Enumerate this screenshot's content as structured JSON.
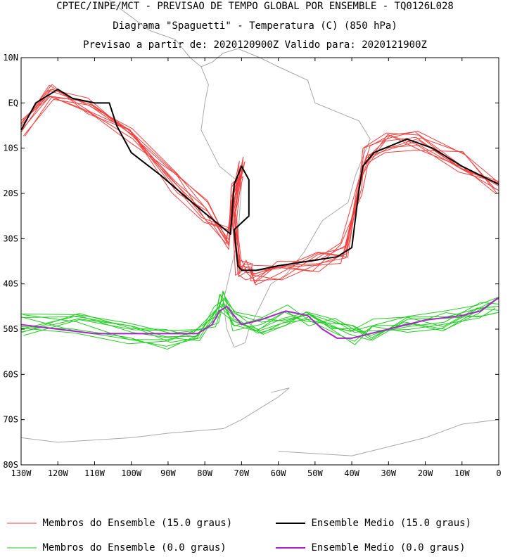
{
  "header": {
    "line1": "CPTEC/INPE/MCT - PREVISAO DE TEMPO GLOBAL POR ENSEMBLE - TQ0126L028",
    "line2": "Diagrama \"Spaguetti\" - Temperatura (C) (850 hPa)",
    "line3": "Previsao a partir de: 2020120900Z  Valido para: 2020121900Z"
  },
  "chart_data": {
    "type": "line",
    "title": "Diagrama \"Spaguetti\" - Temperatura (C) (850 hPa)",
    "xlabel": "",
    "ylabel": "",
    "xlim": [
      -130,
      0
    ],
    "ylim": [
      -80,
      10
    ],
    "grid": false,
    "x_ticks": [
      {
        "value": -130,
        "label": "130W"
      },
      {
        "value": -120,
        "label": "120W"
      },
      {
        "value": -110,
        "label": "110W"
      },
      {
        "value": -100,
        "label": "100W"
      },
      {
        "value": -90,
        "label": "90W"
      },
      {
        "value": -80,
        "label": "80W"
      },
      {
        "value": -70,
        "label": "70W"
      },
      {
        "value": -60,
        "label": "60W"
      },
      {
        "value": -50,
        "label": "50W"
      },
      {
        "value": -40,
        "label": "40W"
      },
      {
        "value": -30,
        "label": "30W"
      },
      {
        "value": -20,
        "label": "20W"
      },
      {
        "value": -10,
        "label": "10W"
      },
      {
        "value": 0,
        "label": "0"
      }
    ],
    "y_ticks": [
      {
        "value": 10,
        "label": "10N"
      },
      {
        "value": 0,
        "label": "EQ"
      },
      {
        "value": -10,
        "label": "10S"
      },
      {
        "value": -20,
        "label": "20S"
      },
      {
        "value": -30,
        "label": "30S"
      },
      {
        "value": -40,
        "label": "40S"
      },
      {
        "value": -50,
        "label": "50S"
      },
      {
        "value": -60,
        "label": "60S"
      },
      {
        "value": -70,
        "label": "70S"
      },
      {
        "value": -80,
        "label": "80S"
      }
    ],
    "legend_position": "bottom",
    "series": [
      {
        "name": "Membros do Ensemble (15.0 graus)",
        "color": "#f04040",
        "x": [
          -130,
          -122,
          -112,
          -100,
          -88,
          -80,
          -74,
          -72,
          -70,
          -72,
          -71,
          -68,
          -67,
          -60,
          -50,
          -42,
          -38,
          -36,
          -30,
          -22,
          -10,
          0
        ],
        "y": [
          -6,
          3,
          0,
          -8,
          -18,
          -24,
          -30,
          -20,
          -14,
          -24,
          -36,
          -37,
          -38,
          -37,
          -35,
          -33,
          -18,
          -12,
          -9,
          -8,
          -13,
          -18
        ]
      },
      {
        "name": "Ensemble Medio (15.0 graus)",
        "color": "#000000",
        "x": [
          -130,
          -128,
          -126,
          -120,
          -116,
          -110,
          -106,
          -104,
          -100,
          -92,
          -82,
          -76,
          -73,
          -72,
          -70,
          -68,
          -68,
          -72,
          -71,
          -70,
          -66,
          -60,
          -52,
          -44,
          -40,
          -38,
          -37,
          -34,
          -25,
          -18,
          -10,
          -5,
          0
        ],
        "y": [
          -6,
          -3,
          0,
          3,
          1,
          0,
          0,
          -5,
          -11,
          -16,
          -23,
          -27,
          -29,
          -18,
          -14,
          -17,
          -25,
          -28,
          -36,
          -37,
          -37,
          -36,
          -35,
          -34,
          -32,
          -19,
          -14,
          -11,
          -8,
          -10,
          -14,
          -16,
          -18
        ]
      },
      {
        "name": "Membros do Ensemble (0.0 graus)",
        "color": "#22cc22",
        "x": [
          -130,
          -115,
          -100,
          -90,
          -82,
          -77,
          -75,
          -72,
          -65,
          -58,
          -52,
          -45,
          -40,
          -35,
          -25,
          -15,
          -5,
          0
        ],
        "y": [
          -49,
          -49,
          -51,
          -52,
          -51,
          -47,
          -44,
          -48,
          -49,
          -47,
          -47,
          -50,
          -51,
          -50,
          -49,
          -48,
          -46,
          -44
        ]
      },
      {
        "name": "Ensemble Medio (0.0 graus)",
        "color": "#aa22cc",
        "x": [
          -130,
          -120,
          -110,
          -100,
          -90,
          -82,
          -78,
          -76,
          -74,
          -72,
          -70,
          -65,
          -58,
          -52,
          -48,
          -44,
          -40,
          -35,
          -30,
          -20,
          -10,
          -5,
          0
        ],
        "y": [
          -49,
          -50,
          -51,
          -51,
          -51,
          -51,
          -49,
          -46,
          -45,
          -47,
          -49,
          -48,
          -46,
          -47,
          -50,
          -52,
          -52,
          -51,
          -50,
          -48,
          -47,
          -46,
          -43
        ]
      }
    ]
  },
  "legend": {
    "items": [
      {
        "label": "Membros do Ensemble (15.0 graus)",
        "color": "#f04040"
      },
      {
        "label": "Ensemble Medio (15.0 graus)",
        "color": "#000000"
      },
      {
        "label": "Membros do Ensemble (0.0 graus)",
        "color": "#22cc22"
      },
      {
        "label": "Ensemble Medio (0.0 graus)",
        "color": "#aa22cc"
      }
    ]
  }
}
